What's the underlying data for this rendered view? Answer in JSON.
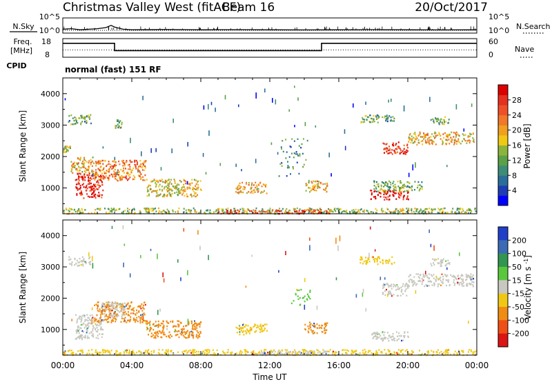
{
  "header": {
    "station": "Christmas Valley West (fitACF)",
    "beam": "Beam 16",
    "date": "20/Oct/2017"
  },
  "left_labels": {
    "nsky": "N.Sky",
    "freq": "Freq.",
    "freq_unit": "[MHz]",
    "cpid": "CPID"
  },
  "right_labels": {
    "nsearch": "N.Search",
    "nave": "Nave"
  },
  "cpid_text": "normal (fast) 151 RF",
  "time_axis": {
    "label": "Time UT",
    "ticks": [
      "00:00",
      "04:00",
      "08:00",
      "12:00",
      "16:00",
      "20:00",
      "00:00"
    ]
  },
  "chart_data": [
    {
      "type": "line",
      "panel": "noise",
      "y_tick_labels": [
        "10^5",
        "10^0"
      ],
      "right_tick_labels": [
        "10^5",
        "10^0"
      ],
      "series": [
        {
          "name": "N.Sky",
          "style": "solid",
          "x": [
            0,
            0.5,
            1,
            1.5,
            2,
            2.5,
            2.8,
            3,
            3.5,
            4,
            6,
            8,
            10,
            12,
            14,
            16,
            18,
            20,
            22,
            24
          ],
          "y": [
            1.2,
            1.3,
            1.1,
            1.2,
            1.3,
            1.5,
            1.9,
            1.6,
            1.2,
            1.1,
            1.15,
            1.1,
            1.12,
            1.1,
            1.08,
            1.1,
            1.12,
            1.1,
            1.08,
            1.1
          ]
        },
        {
          "name": "N.Search",
          "style": "dotted",
          "x": [
            0,
            24
          ],
          "y": [
            1.0,
            1.0
          ]
        }
      ]
    },
    {
      "type": "line",
      "panel": "frequency",
      "y_tick_labels": [
        "18",
        "8"
      ],
      "right_tick_labels": [
        "60",
        "0"
      ],
      "series": [
        {
          "name": "Freq.",
          "style": "solid",
          "x": [
            0,
            3.0,
            3.0,
            15.0,
            15.0,
            24
          ],
          "y": [
            16.5,
            16.5,
            11,
            11,
            16.5,
            16.5
          ]
        },
        {
          "name": "Nave",
          "style": "dotted",
          "x": [
            0,
            24
          ],
          "y": [
            11.5,
            11.5
          ]
        }
      ]
    },
    {
      "type": "heatmap",
      "panel": "power",
      "ylabel": "Slant Range [km]",
      "ylim": [
        180,
        4500
      ],
      "y_ticks": [
        1000,
        2000,
        3000,
        4000
      ],
      "xlim": [
        0,
        24
      ],
      "colorbar": {
        "label": "Power [dB]",
        "ticks": [
          4,
          8,
          12,
          16,
          20,
          24,
          28
        ],
        "colors": [
          "#0000ff",
          "#1e3cb4",
          "#2a6e9a",
          "#3c8c78",
          "#5aa046",
          "#8cb43c",
          "#f0c814",
          "#f0a01e",
          "#f07828",
          "#f05028",
          "#e63020",
          "#dc0000"
        ]
      },
      "regions": [
        {
          "t0": 0.0,
          "t1": 24.0,
          "r0": 200,
          "r1": 380,
          "level": 0.45
        },
        {
          "t0": 9.0,
          "t1": 15.5,
          "r0": 200,
          "r1": 330,
          "level": 0.85
        },
        {
          "t0": 0.7,
          "t1": 2.3,
          "r0": 700,
          "r1": 1500,
          "level": 0.9
        },
        {
          "t0": 0.4,
          "t1": 1.8,
          "r0": 1500,
          "r1": 2000,
          "level": 0.6
        },
        {
          "t0": 1.8,
          "t1": 4.8,
          "r0": 1250,
          "r1": 1900,
          "level": 0.7
        },
        {
          "t0": 4.8,
          "t1": 8.0,
          "r0": 750,
          "r1": 1300,
          "level": 0.55
        },
        {
          "t0": 0.3,
          "t1": 1.6,
          "r0": 3050,
          "r1": 3350,
          "level": 0.35
        },
        {
          "t0": 0.0,
          "t1": 0.4,
          "r0": 2150,
          "r1": 2350,
          "level": 0.5
        },
        {
          "t0": 10.0,
          "t1": 11.8,
          "r0": 850,
          "r1": 1200,
          "level": 0.6
        },
        {
          "t0": 14.0,
          "t1": 15.3,
          "r0": 900,
          "r1": 1250,
          "level": 0.6
        },
        {
          "t0": 17.8,
          "t1": 20.0,
          "r0": 650,
          "r1": 950,
          "level": 0.95
        },
        {
          "t0": 18.0,
          "t1": 20.8,
          "r0": 900,
          "r1": 1250,
          "level": 0.4
        },
        {
          "t0": 17.2,
          "t1": 19.2,
          "r0": 3100,
          "r1": 3350,
          "level": 0.35
        },
        {
          "t0": 18.5,
          "t1": 20.0,
          "r0": 2100,
          "r1": 2500,
          "level": 0.85
        },
        {
          "t0": 20.0,
          "t1": 23.8,
          "r0": 2400,
          "r1": 2800,
          "level": 0.6
        },
        {
          "t0": 21.3,
          "t1": 22.4,
          "r0": 3050,
          "r1": 3300,
          "level": 0.4
        },
        {
          "t0": 12.5,
          "t1": 14.2,
          "r0": 1400,
          "r1": 2600,
          "level": 0.3,
          "density": 0.12
        },
        {
          "t0": 3.0,
          "t1": 3.4,
          "r0": 2900,
          "r1": 3200,
          "level": 0.4,
          "density": 0.2
        }
      ]
    },
    {
      "type": "heatmap",
      "panel": "velocity",
      "ylabel": "Slant Range [km]",
      "ylim": [
        180,
        4500
      ],
      "y_ticks": [
        1000,
        2000,
        3000,
        4000
      ],
      "xlim": [
        0,
        24
      ],
      "colorbar": {
        "label": "Velocity [m s^-1]",
        "ticks": [
          "200",
          "100",
          "50",
          "15",
          "-15",
          "-50",
          "-100",
          "-200"
        ],
        "colors": [
          "#2040c8",
          "#3c6ab4",
          "#329650",
          "#5ac83c",
          "#c8c8c0",
          "#f0c814",
          "#f08c14",
          "#f05014",
          "#dc1414"
        ]
      },
      "regions": [
        {
          "t0": 0.0,
          "t1": 24.0,
          "r0": 200,
          "r1": 380,
          "vel": "-30"
        },
        {
          "t0": 11.0,
          "t1": 16.0,
          "r0": 200,
          "r1": 330,
          "vel": "15"
        },
        {
          "t0": 0.7,
          "t1": 2.3,
          "r0": 700,
          "r1": 1500,
          "vel": "0"
        },
        {
          "t0": 1.8,
          "t1": 4.8,
          "r0": 1250,
          "r1": 1900,
          "vel": "-80"
        },
        {
          "t0": 4.8,
          "t1": 8.0,
          "r0": 750,
          "r1": 1300,
          "vel": "-60"
        },
        {
          "t0": 2.2,
          "t1": 3.6,
          "r0": 1400,
          "r1": 1900,
          "vel": "0"
        },
        {
          "t0": 0.3,
          "t1": 1.6,
          "r0": 3050,
          "r1": 3350,
          "vel": "0"
        },
        {
          "t0": 10.0,
          "t1": 11.8,
          "r0": 850,
          "r1": 1200,
          "vel": "-30"
        },
        {
          "t0": 14.0,
          "t1": 15.3,
          "r0": 900,
          "r1": 1250,
          "vel": "-80"
        },
        {
          "t0": 17.8,
          "t1": 20.0,
          "r0": 650,
          "r1": 950,
          "vel": "0"
        },
        {
          "t0": 17.2,
          "t1": 19.2,
          "r0": 3100,
          "r1": 3350,
          "vel": "-30"
        },
        {
          "t0": 18.5,
          "t1": 20.0,
          "r0": 2100,
          "r1": 2500,
          "vel": "0"
        },
        {
          "t0": 20.0,
          "t1": 23.8,
          "r0": 2400,
          "r1": 2800,
          "vel": "0"
        },
        {
          "t0": 21.3,
          "t1": 22.4,
          "r0": 3050,
          "r1": 3300,
          "vel": "0"
        },
        {
          "t0": 13.0,
          "t1": 14.3,
          "r0": 1800,
          "r1": 2300,
          "vel": "30",
          "density": 0.2
        }
      ]
    }
  ]
}
